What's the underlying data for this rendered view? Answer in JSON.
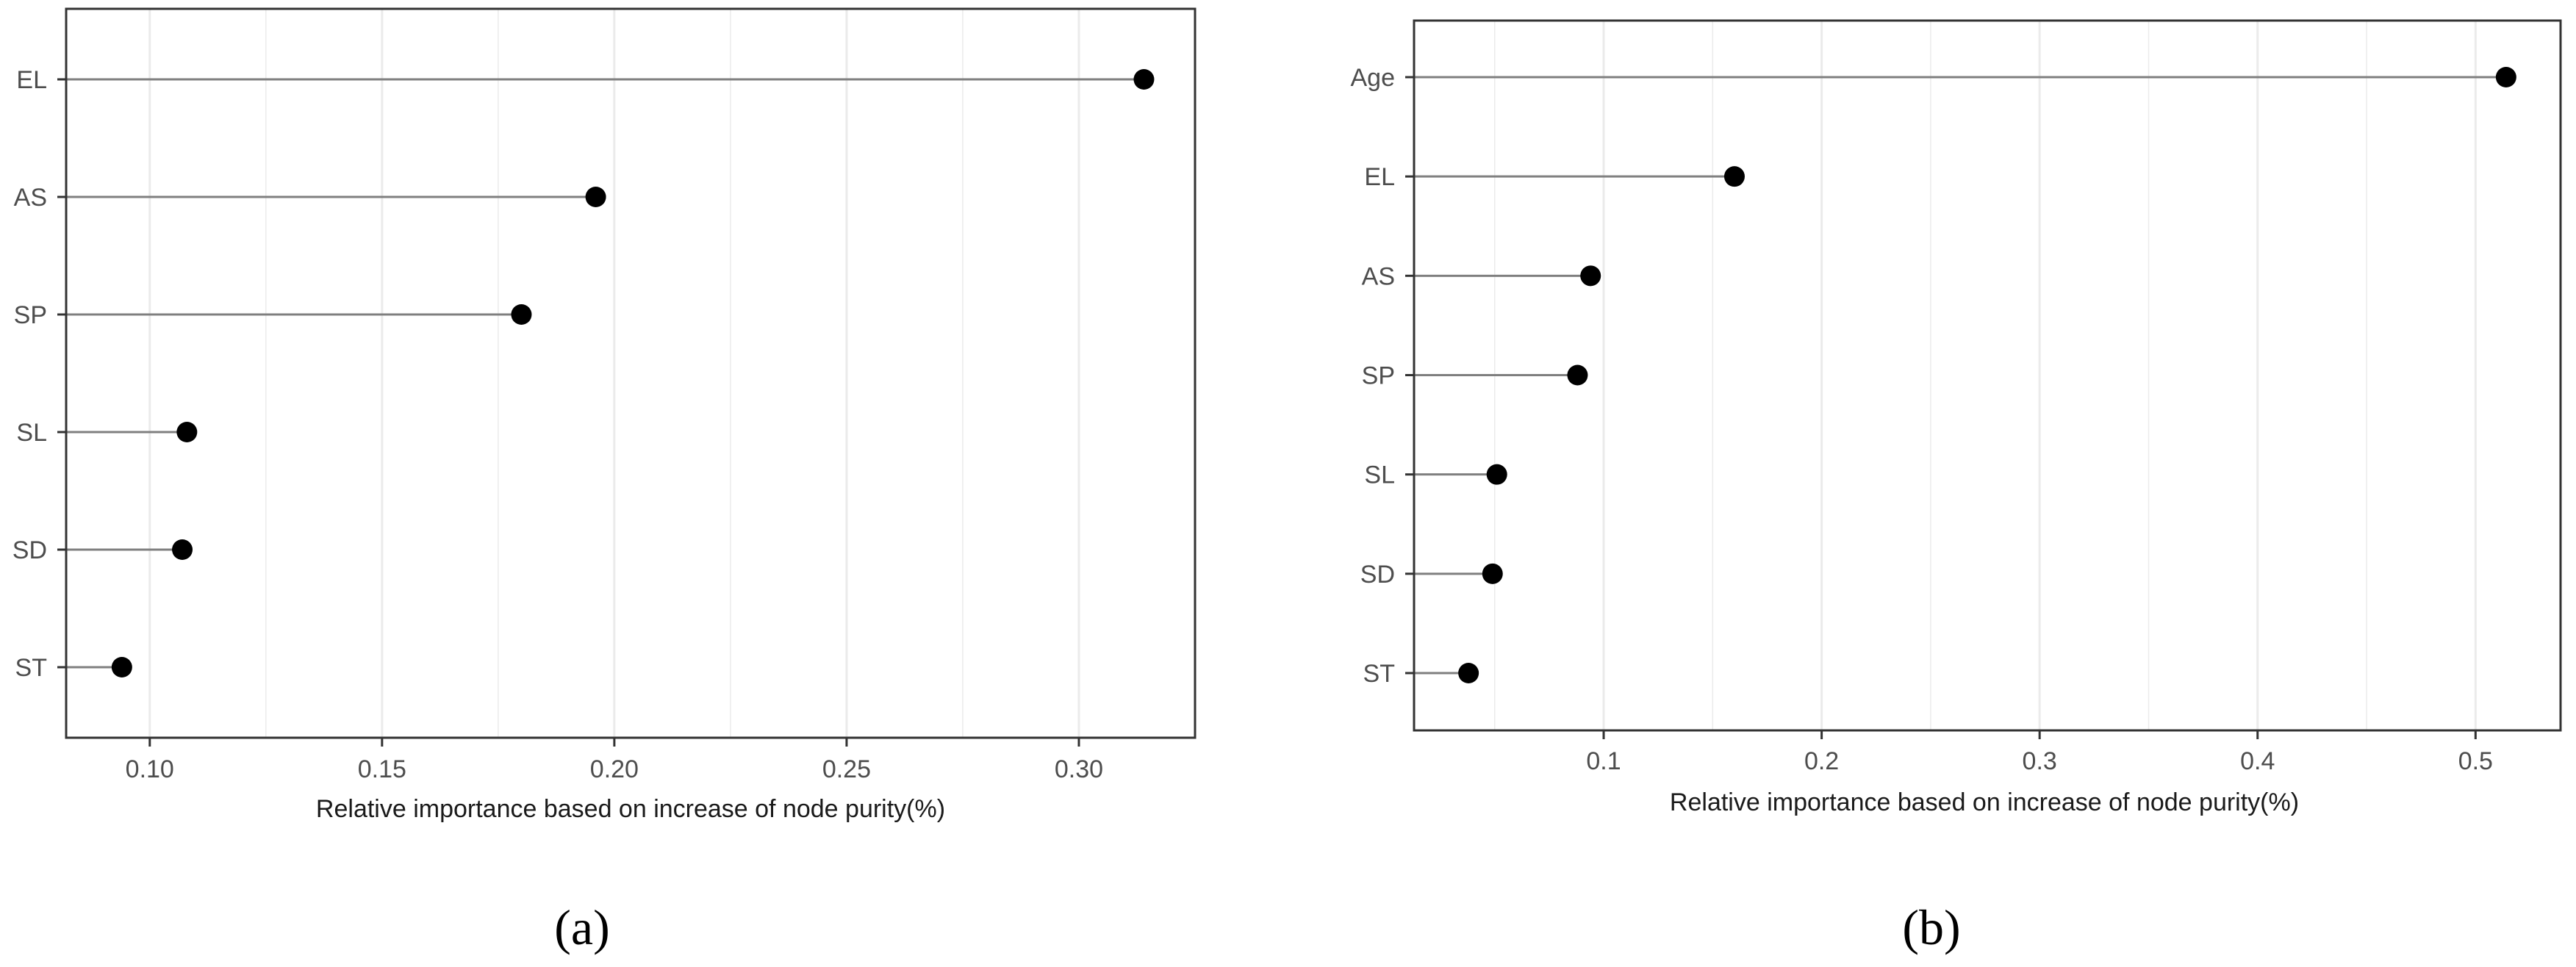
{
  "chart_data": [
    {
      "type": "lollipop",
      "panel_label": "a",
      "categories": [
        "EL",
        "AS",
        "SP",
        "SL",
        "SD",
        "ST"
      ],
      "values": [
        0.314,
        0.196,
        0.18,
        0.108,
        0.107,
        0.094
      ],
      "xlabel": "Relative importance based on increase of node purity(%)",
      "xlim": [
        0.082,
        0.325
      ],
      "xticks": [
        0.1,
        0.15,
        0.2,
        0.25,
        0.3
      ],
      "xtick_labels": [
        "0.10",
        "0.15",
        "0.20",
        "0.25",
        "0.30"
      ],
      "grid": true,
      "colors": {
        "point": "#000000",
        "stem": "#7f7f7f",
        "grid": "#ebebeb",
        "frame": "#333333"
      }
    },
    {
      "type": "lollipop",
      "panel_label": "b",
      "categories": [
        "Age",
        "EL",
        "AS",
        "SP",
        "SL",
        "SD",
        "ST"
      ],
      "values": [
        0.514,
        0.16,
        0.094,
        0.088,
        0.051,
        0.049,
        0.038
      ],
      "xlabel": "Relative importance based on increase of node purity(%)",
      "xlim": [
        0.013,
        0.539
      ],
      "xticks": [
        0.1,
        0.2,
        0.3,
        0.4,
        0.5
      ],
      "xtick_labels": [
        "0.1",
        "0.2",
        "0.3",
        "0.4",
        "0.5"
      ],
      "grid": true,
      "colors": {
        "point": "#000000",
        "stem": "#7f7f7f",
        "grid": "#ebebeb",
        "frame": "#333333"
      }
    }
  ],
  "captions": [
    "(a)",
    "(b)"
  ]
}
